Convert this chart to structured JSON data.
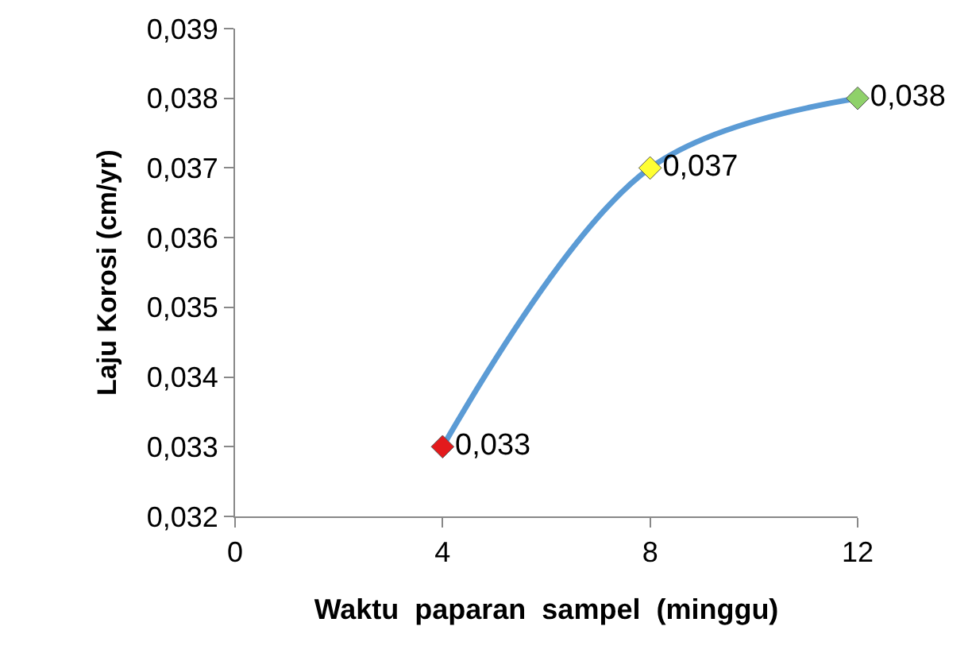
{
  "chart_data": {
    "type": "line",
    "xlabel": "Waktu  paparan  sampel  (minggu)",
    "ylabel": "Laju Korosi (cm/yr)",
    "x": [
      4,
      8,
      12
    ],
    "series": [
      {
        "color": "#5b9bd5",
        "colors": [
          "#e31a1c",
          "#ffff33",
          "#8fd16a"
        ],
        "values": [
          0.033,
          0.037,
          0.038
        ],
        "value_labels": [
          "0,033",
          "0,037",
          "0,038"
        ]
      }
    ],
    "xlim": [
      0,
      12
    ],
    "xticks": [
      0,
      4,
      8,
      12
    ],
    "ylim": [
      0.032,
      0.039
    ],
    "yticks": [
      {
        "value": 0.032,
        "label": "0,032"
      },
      {
        "value": 0.033,
        "label": "0,033"
      },
      {
        "value": 0.034,
        "label": "0,034"
      },
      {
        "value": 0.035,
        "label": "0,035"
      },
      {
        "value": 0.036,
        "label": "0,036"
      },
      {
        "value": 0.037,
        "label": "0,037"
      },
      {
        "value": 0.038,
        "label": "0,038"
      },
      {
        "value": 0.039,
        "label": "0,039"
      }
    ],
    "grid": false,
    "marker": "diamond",
    "line_style": "solid"
  }
}
